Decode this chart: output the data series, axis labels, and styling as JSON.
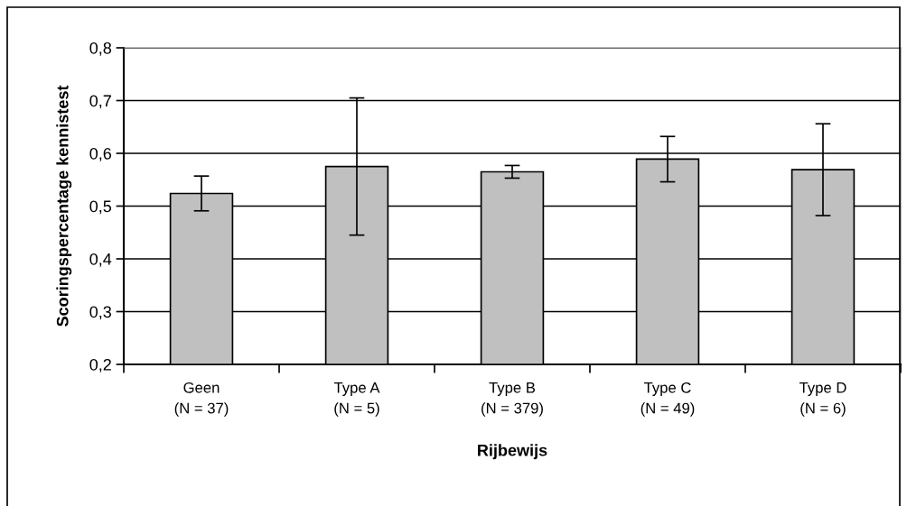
{
  "chart_data": {
    "type": "bar",
    "xlabel": "Rijbewijs",
    "ylabel": "Scoringspercentage kennistest",
    "categories": [
      "Geen\n(N = 37)",
      "Type A\n(N = 5)",
      "Type B\n(N = 379)",
      "Type C\n(N = 49)",
      "Type D\n(N = 6)"
    ],
    "values": [
      0.524,
      0.575,
      0.565,
      0.589,
      0.569
    ],
    "errors": [
      0.033,
      0.13,
      0.012,
      0.043,
      0.087
    ],
    "color": "#c0c0c0",
    "ylim": [
      0.2,
      0.8
    ],
    "yticks": [
      {
        "value": 0.2,
        "label": "0,2"
      },
      {
        "value": 0.3,
        "label": "0,3"
      },
      {
        "value": 0.4,
        "label": "0,4"
      },
      {
        "value": 0.5,
        "label": "0,5"
      },
      {
        "value": 0.6,
        "label": "0,6"
      },
      {
        "value": 0.7,
        "label": "0,7"
      },
      {
        "value": 0.8,
        "label": "0,8"
      }
    ],
    "grid": "y",
    "legend": false
  }
}
